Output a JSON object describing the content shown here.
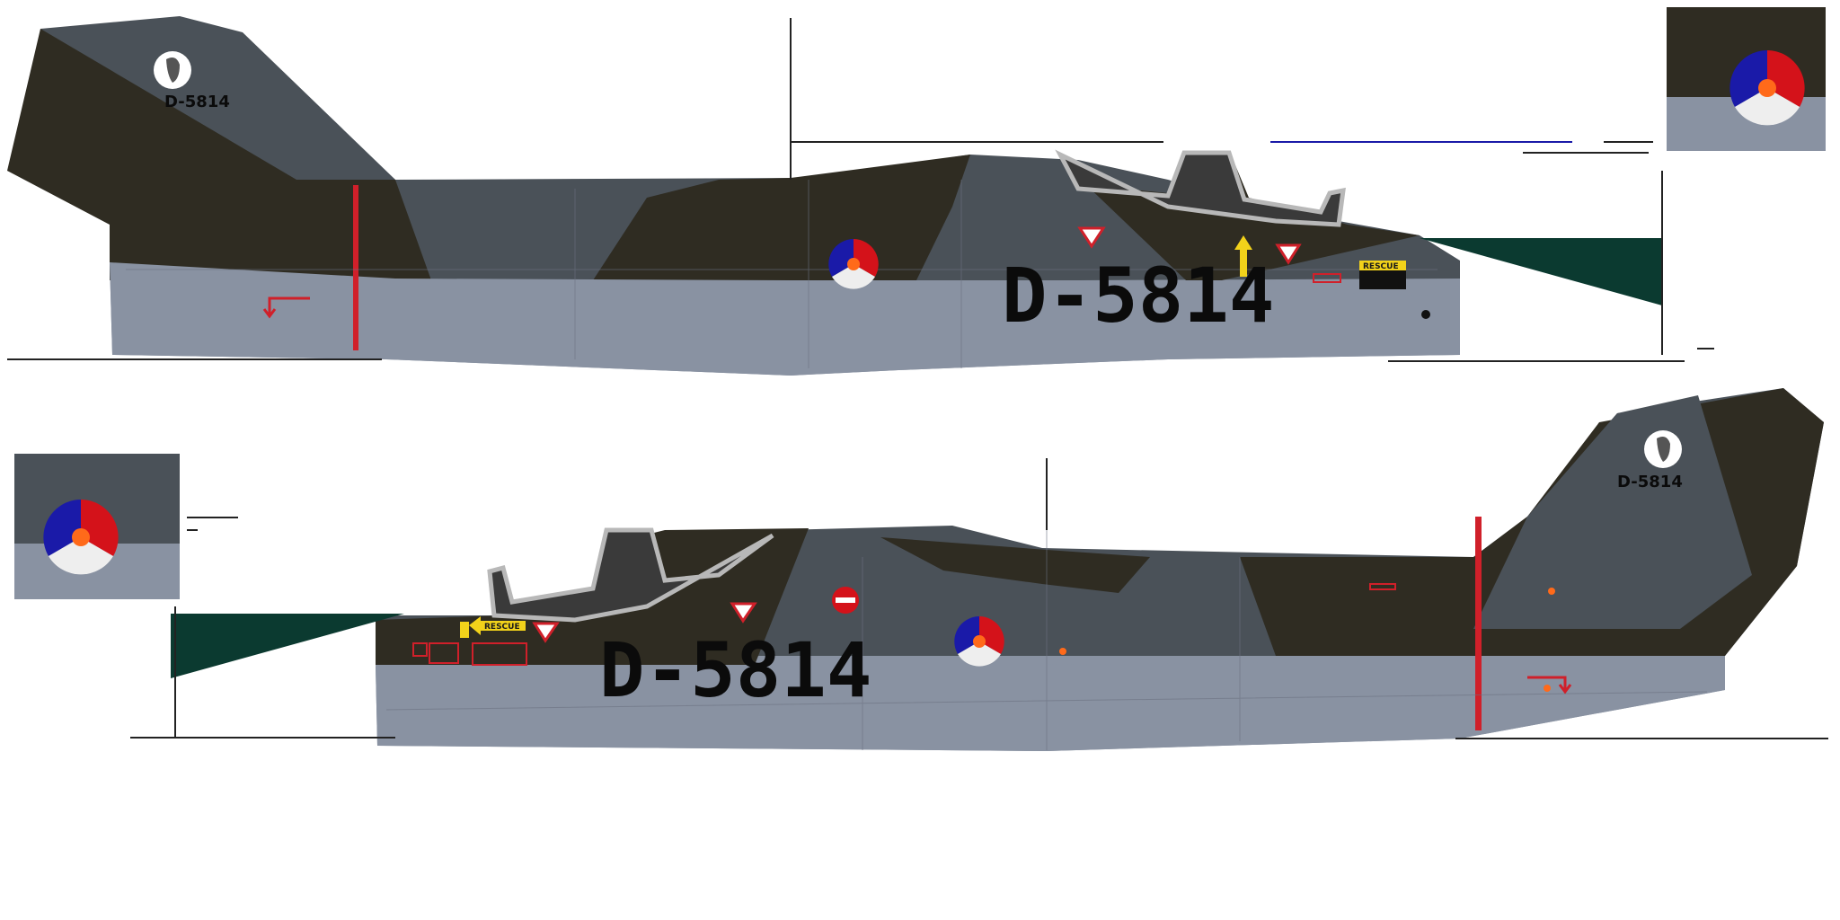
{
  "skin": {
    "serial": "D-5814",
    "tail_serial": "D-5814",
    "rescue_label": "RESCUE",
    "colors": {
      "camo_dark": "#2f2c22",
      "camo_grey": "#4a5158",
      "underside": "#8992a2",
      "tail_green": "#0b3a30",
      "roundel_blue": "#1a1aa8",
      "roundel_red": "#d4121a",
      "roundel_white": "#eeeeee",
      "roundel_orange": "#ff6a1a",
      "stripe_red": "#d0202a",
      "rescue_yellow": "#f2d21a"
    },
    "icons": [
      "parrot-emblem-icon",
      "roundel-icon",
      "warning-triangle-icon",
      "no-entry-icon",
      "arrow-icon"
    ]
  }
}
